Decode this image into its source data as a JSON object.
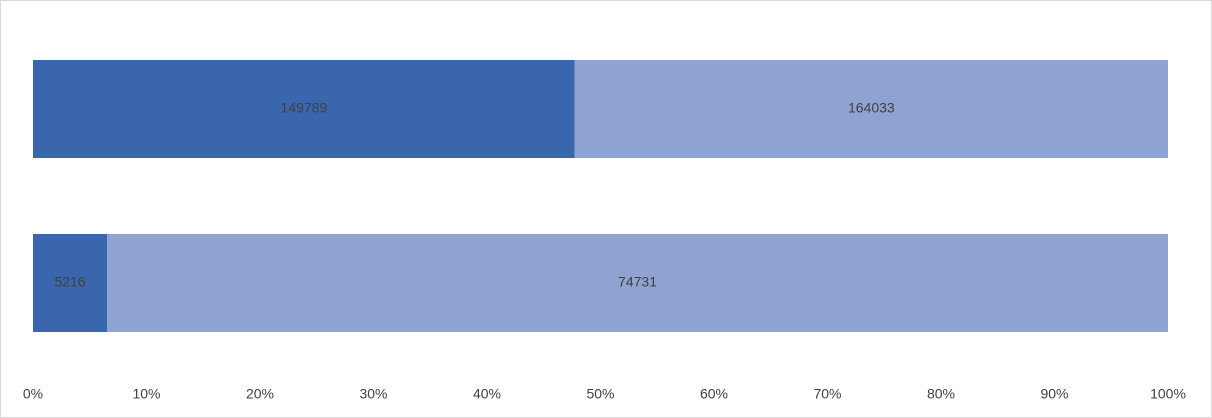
{
  "chart_data": {
    "type": "bar",
    "orientation": "horizontal",
    "stack": "percent",
    "categories": [
      null,
      null
    ],
    "series": [
      {
        "color": "#3a66ae",
        "values": [
          149789,
          5216
        ]
      },
      {
        "color": "#8fa3d3",
        "values": [
          164033,
          74731
        ]
      }
    ],
    "xlim": [
      0,
      100
    ],
    "xticks": [
      {
        "value": 0,
        "label": "0%"
      },
      {
        "value": 10,
        "label": "10%"
      },
      {
        "value": 20,
        "label": "20%"
      },
      {
        "value": 30,
        "label": "30%"
      },
      {
        "value": 40,
        "label": "40%"
      },
      {
        "value": 50,
        "label": "50%"
      },
      {
        "value": 60,
        "label": "60%"
      },
      {
        "value": 70,
        "label": "70%"
      },
      {
        "value": 80,
        "label": "80%"
      },
      {
        "value": 90,
        "label": "90%"
      },
      {
        "value": 100,
        "label": "100%"
      }
    ],
    "grid": false
  }
}
